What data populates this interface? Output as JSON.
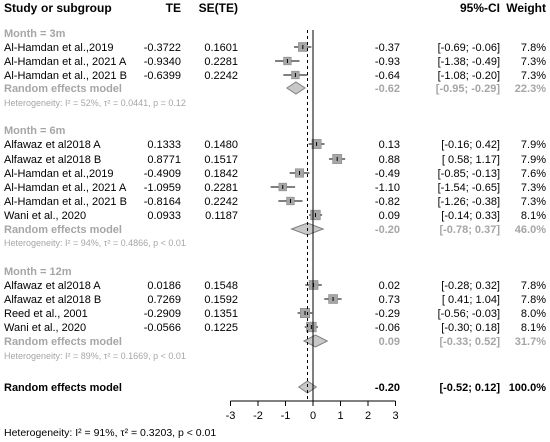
{
  "header": {
    "study": "Study",
    "or_subgroup": "or subgroup",
    "te": "TE",
    "se_te": "SE(TE)",
    "ci": "95%-CI",
    "weight": "Weight"
  },
  "colors": {
    "text": "#000000",
    "subgroup_gray": "#a6a6a6",
    "marker_fill": "#a6a6a6",
    "marker_stroke": "#7f7f7f",
    "diamond_fill": "#c8c8c8",
    "diamond_stroke": "#7f7f7f"
  },
  "chart_data": {
    "type": "forest",
    "x_axis": {
      "ticks": [
        -3,
        -2,
        -1,
        0,
        1,
        2,
        3
      ],
      "range": [
        -3,
        3
      ]
    },
    "overall_estimate_line": -0.2,
    "groups": [
      {
        "label": "Month = 3m",
        "studies": [
          {
            "name": "Al-Hamdan et al.,2019",
            "te": "-0.3722",
            "se": "0.1601",
            "est": -0.37,
            "lo": -0.69,
            "hi": -0.06,
            "ci_text": "-0.37   [-0.69; -0.06]",
            "weight": "7.8%",
            "w": 7.8
          },
          {
            "name": "Al-Hamdan et al., 2021 A",
            "te": "-0.9340",
            "se": "0.2281",
            "est": -0.93,
            "lo": -1.38,
            "hi": -0.49,
            "ci_text": "-0.93   [-1.38; -0.49]",
            "weight": "7.3%",
            "w": 7.3
          },
          {
            "name": "Al-Hamdan et al., 2021 B",
            "te": "-0.6399",
            "se": "0.2242",
            "est": -0.64,
            "lo": -1.08,
            "hi": -0.2,
            "ci_text": "-0.64   [-1.08; -0.20]",
            "weight": "7.3%",
            "w": 7.3
          }
        ],
        "random": {
          "label": "Random effects model",
          "est": -0.62,
          "lo": -0.95,
          "hi": -0.29,
          "ci_text": "-0.62   [-0.95; -0.29]",
          "weight": "22.3%"
        },
        "heterogeneity": "Heterogeneity: I² = 52%, τ² = 0.0441, p = 0.12"
      },
      {
        "label": "Month = 6m",
        "studies": [
          {
            "name": "Alfawaz et al2018 A",
            "te": "0.1333",
            "se": "0.1480",
            "est": 0.13,
            "lo": -0.16,
            "hi": 0.42,
            "ci_text": "0.13   [-0.16; 0.42]",
            "weight": "7.9%",
            "w": 7.9
          },
          {
            "name": "Alfawaz et al2018 B",
            "te": "0.8771",
            "se": "0.1517",
            "est": 0.88,
            "lo": 0.58,
            "hi": 1.17,
            "ci_text": "0.88   [ 0.58; 1.17]",
            "weight": "7.9%",
            "w": 7.9
          },
          {
            "name": "Al-Hamdan et al.,2019",
            "te": "-0.4909",
            "se": "0.1842",
            "est": -0.49,
            "lo": -0.85,
            "hi": -0.13,
            "ci_text": "-0.49   [-0.85; -0.13]",
            "weight": "7.6%",
            "w": 7.6
          },
          {
            "name": "Al-Hamdan et al., 2021 A",
            "te": "-1.0959",
            "se": "0.2281",
            "est": -1.1,
            "lo": -1.54,
            "hi": -0.65,
            "ci_text": "-1.10   [-1.54; -0.65]",
            "weight": "7.3%",
            "w": 7.3
          },
          {
            "name": "Al-Hamdan et al., 2021 B",
            "te": "-0.8164",
            "se": "0.2242",
            "est": -0.82,
            "lo": -1.26,
            "hi": -0.38,
            "ci_text": "-0.82   [-1.26; -0.38]",
            "weight": "7.3%",
            "w": 7.3
          },
          {
            "name": "Wani et al., 2020",
            "te": "0.0933",
            "se": "0.1187",
            "est": 0.09,
            "lo": -0.14,
            "hi": 0.33,
            "ci_text": "0.09   [-0.14; 0.33]",
            "weight": "8.1%",
            "w": 8.1
          }
        ],
        "random": {
          "label": "Random effects model",
          "est": -0.2,
          "lo": -0.78,
          "hi": 0.37,
          "ci_text": "-0.20   [-0.78; 0.37]",
          "weight": "46.0%"
        },
        "heterogeneity": "Heterogeneity: I² = 94%, τ² = 0.4866, p < 0.01"
      },
      {
        "label": "Month = 12m",
        "studies": [
          {
            "name": "Alfawaz et al2018 A",
            "te": "0.0186",
            "se": "0.1548",
            "est": 0.02,
            "lo": -0.28,
            "hi": 0.32,
            "ci_text": "0.02   [-0.28; 0.32]",
            "weight": "7.8%",
            "w": 7.8
          },
          {
            "name": "Alfawaz et al2018 B",
            "te": "0.7269",
            "se": "0.1592",
            "est": 0.73,
            "lo": 0.41,
            "hi": 1.04,
            "ci_text": "0.73   [ 0.41; 1.04]",
            "weight": "7.8%",
            "w": 7.8
          },
          {
            "name": "Reed et al., 2001",
            "te": "-0.2909",
            "se": "0.1351",
            "est": -0.29,
            "lo": -0.56,
            "hi": -0.03,
            "ci_text": "-0.29   [-0.56; -0.03]",
            "weight": "8.0%",
            "w": 8.0
          },
          {
            "name": "Wani et al., 2020",
            "te": "-0.0566",
            "se": "0.1225",
            "est": -0.06,
            "lo": -0.3,
            "hi": 0.18,
            "ci_text": "-0.06   [-0.30; 0.18]",
            "weight": "8.1%",
            "w": 8.1
          }
        ],
        "random": {
          "label": "Random effects model",
          "est": 0.09,
          "lo": -0.33,
          "hi": 0.52,
          "ci_text": "0.09   [-0.33; 0.52]",
          "weight": "31.7%"
        },
        "heterogeneity": "Heterogeneity: I² = 89%, τ² = 0.1669, p < 0.01"
      }
    ],
    "overall": {
      "label": "Random effects model",
      "est": -0.2,
      "lo": -0.52,
      "hi": 0.12,
      "ci_text": "-0.20   [-0.52;  0.12]",
      "weight": "100.0%",
      "heterogeneity": "Heterogeneity: I² = 91%, τ² = 0.3203, p < 0.01"
    }
  }
}
